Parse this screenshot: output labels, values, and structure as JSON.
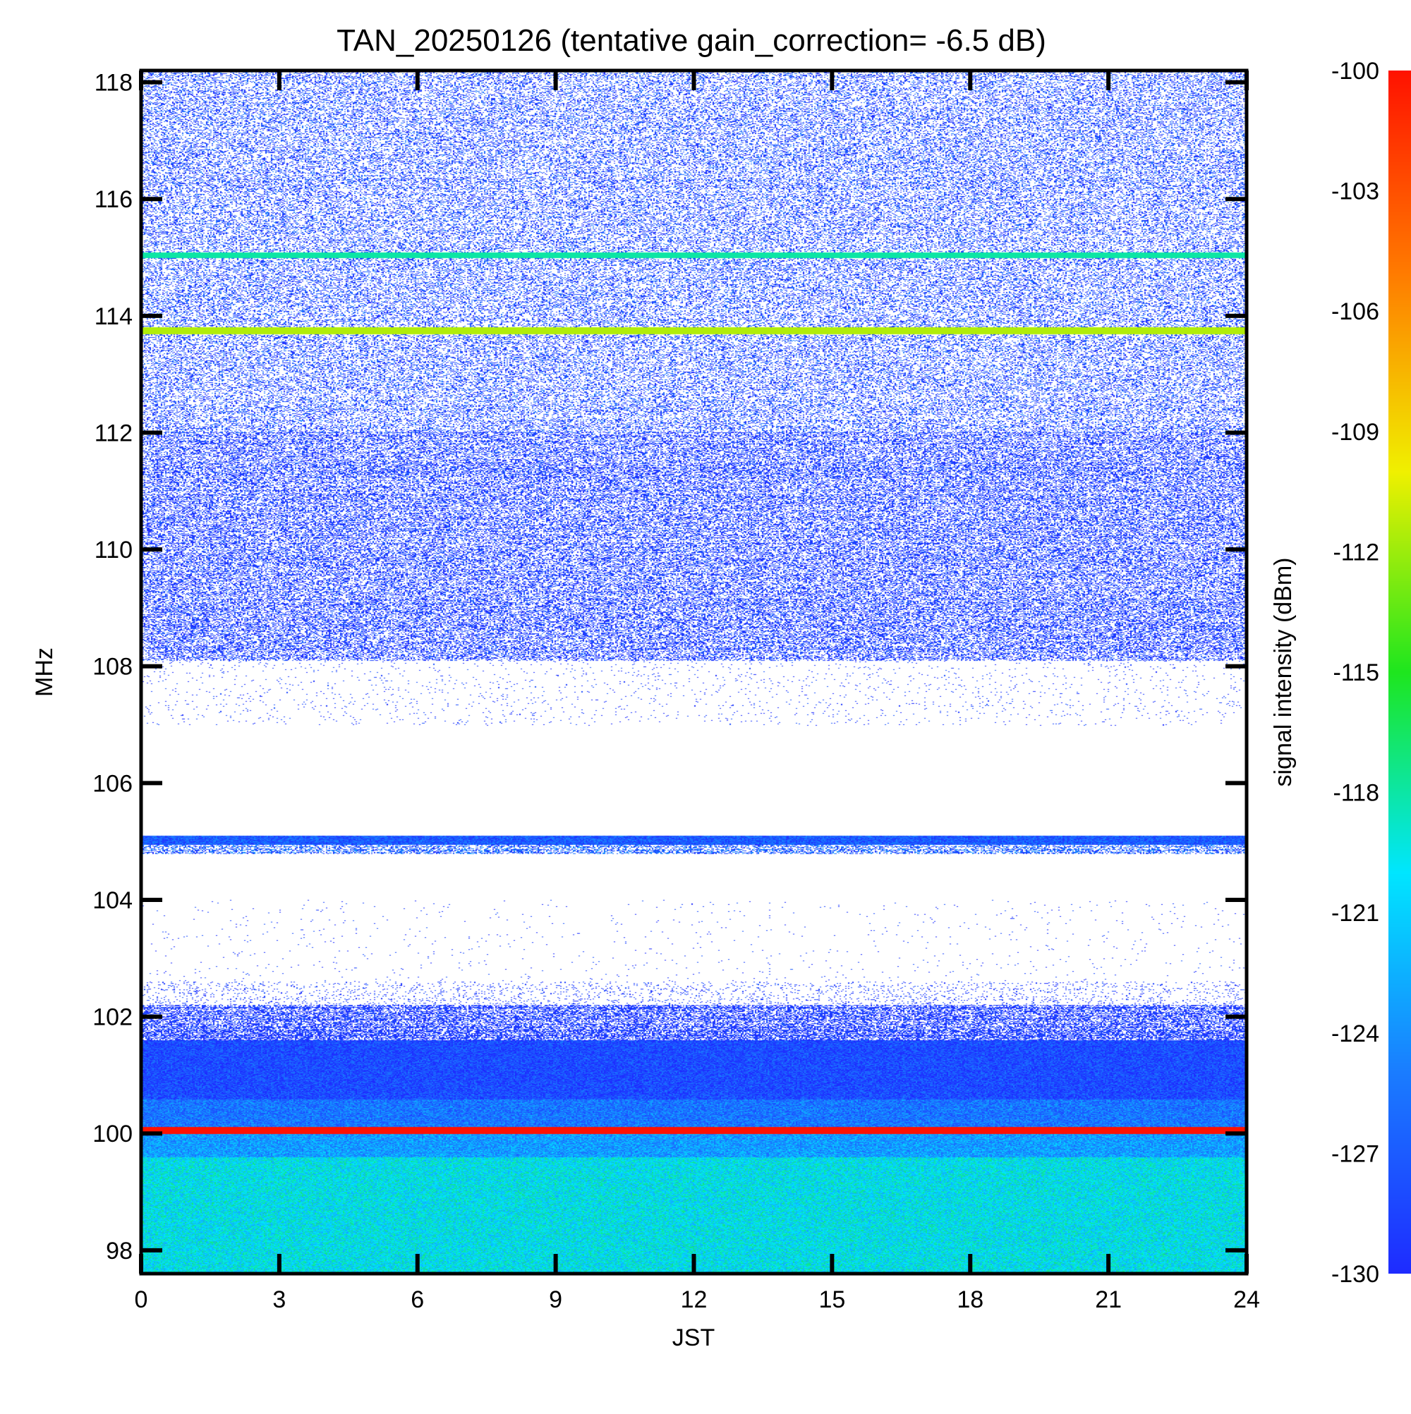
{
  "chart_data": {
    "type": "heatmap",
    "title": "TAN_20250126 (tentative gain_correction= -6.5 dB)",
    "xlabel": "JST",
    "ylabel": "MHz",
    "colorbar_label": "signal intensity (dBm)",
    "xlim": [
      0,
      24
    ],
    "ylim": [
      97.6,
      118.2
    ],
    "xticks": [
      0,
      3,
      6,
      9,
      12,
      15,
      18,
      21,
      24
    ],
    "yticks": [
      98,
      100,
      102,
      104,
      106,
      108,
      110,
      112,
      114,
      116,
      118
    ],
    "clim": [
      -130,
      -100
    ],
    "colorbar_ticks": [
      -100,
      -103,
      -106,
      -109,
      -112,
      -115,
      -118,
      -121,
      -124,
      -127,
      -130
    ],
    "colormap": [
      "#1e2bff",
      "#1a7cff",
      "#00e6ff",
      "#1ee61e",
      "#f0f000",
      "#ff7a00",
      "#ff1200"
    ],
    "bands": [
      {
        "fmin": 97.6,
        "fmax": 99.6,
        "type": "dense",
        "level": -120.0,
        "spread": 1.5,
        "density": 1.0
      },
      {
        "fmin": 99.6,
        "fmax": 100.0,
        "type": "dense",
        "level": -123.5,
        "spread": 1.5,
        "density": 1.0
      },
      {
        "fmin": 100.0,
        "fmax": 100.12,
        "type": "line",
        "level": -100.0
      },
      {
        "fmin": 100.12,
        "fmax": 100.6,
        "type": "dense",
        "level": -125.5,
        "spread": 1.5,
        "density": 1.0
      },
      {
        "fmin": 100.6,
        "fmax": 101.6,
        "type": "dense",
        "level": -128.0,
        "spread": 1.5,
        "density": 1.0
      },
      {
        "fmin": 101.6,
        "fmax": 102.2,
        "type": "noise",
        "level": -129.0,
        "spread": 1.0,
        "density": 0.75
      },
      {
        "fmin": 102.2,
        "fmax": 102.6,
        "type": "noise",
        "level": -129.0,
        "spread": 1.0,
        "density": 0.12
      },
      {
        "fmin": 102.6,
        "fmax": 104.0,
        "type": "noise",
        "level": -129.0,
        "spread": 1.0,
        "density": 0.01
      },
      {
        "fmin": 104.8,
        "fmax": 104.95,
        "type": "noise",
        "level": -127.0,
        "spread": 2.0,
        "density": 0.6
      },
      {
        "fmin": 104.95,
        "fmax": 105.1,
        "type": "dense",
        "level": -127.0,
        "spread": 1.5,
        "density": 1.0
      },
      {
        "fmin": 107.0,
        "fmax": 108.1,
        "type": "noise",
        "level": -129.0,
        "spread": 1.0,
        "density": 0.03
      },
      {
        "fmin": 108.1,
        "fmax": 112.0,
        "type": "noise",
        "level": -129.0,
        "spread": 1.5,
        "density": 0.55
      },
      {
        "fmin": 112.0,
        "fmax": 118.2,
        "type": "noise",
        "level": -128.5,
        "spread": 2.0,
        "density": 0.4
      },
      {
        "fmin": 113.7,
        "fmax": 113.8,
        "type": "line",
        "level": -111.5
      },
      {
        "fmin": 115.0,
        "fmax": 115.08,
        "type": "line",
        "level": -118.0
      }
    ]
  }
}
